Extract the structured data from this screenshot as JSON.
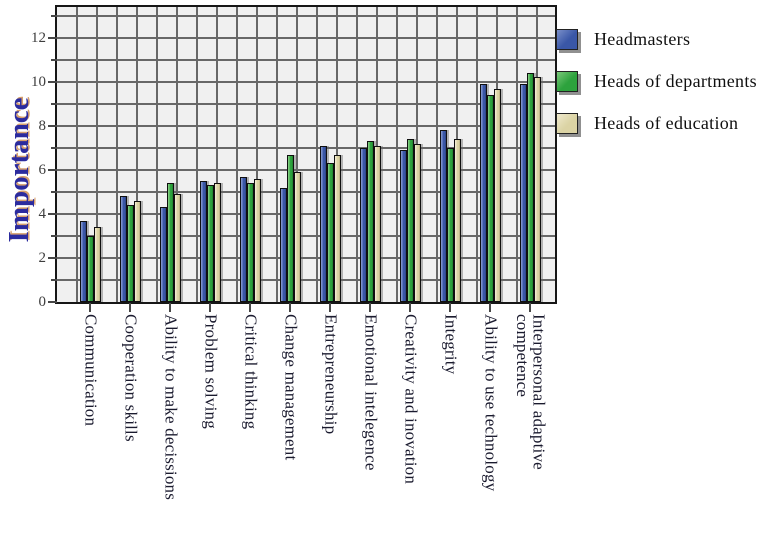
{
  "chart_data": {
    "type": "bar",
    "title": "",
    "ylabel": "Importance",
    "xlabel": "",
    "categories": [
      "Communication",
      "Cooperation skills",
      "Ability to make decissions",
      "Problem solving",
      "Critical thinking",
      "Change management",
      "Entrepreneurship",
      "Emotional intelegence",
      "Creativity and inovation",
      "Integrity",
      "Ability to use technology",
      "Interpersonal adaptive competence"
    ],
    "series": [
      {
        "name": "Headmasters",
        "color": "#3a57a7",
        "light": "#7a8fc9",
        "dark": "#2a3f7e",
        "values": [
          3.7,
          4.8,
          4.3,
          5.5,
          5.7,
          5.2,
          7.1,
          7.0,
          6.9,
          7.8,
          9.9,
          9.9
        ]
      },
      {
        "name": "Heads of departments",
        "color": "#2da23d",
        "light": "#7bc97a",
        "dark": "#1e7c2c",
        "values": [
          3.0,
          4.4,
          5.4,
          5.3,
          5.4,
          6.7,
          6.3,
          7.3,
          7.4,
          7.0,
          9.4,
          10.4
        ]
      },
      {
        "name": "Heads of education",
        "color": "#dbd3a4",
        "light": "#efe9cd",
        "dark": "#b2a97b",
        "values": [
          3.4,
          4.6,
          4.9,
          5.4,
          5.6,
          5.9,
          6.7,
          7.1,
          7.2,
          7.4,
          9.7,
          10.2
        ]
      }
    ],
    "ylim": [
      0,
      13.4
    ],
    "yticks_labeled": [
      0,
      2,
      4,
      6,
      8,
      10,
      12
    ],
    "grid": true,
    "legend_position": "top-right"
  },
  "colors": {
    "plot_background": "#f0f0f0",
    "grid_line": "#686868",
    "plot_border": "#161616",
    "axis_tick": "#474747",
    "ylabel_text": "#2b2b9e",
    "tick_label_text": "#3d3d3d",
    "category_label_text": "#1a1a2e",
    "legend_text": "#101010"
  }
}
